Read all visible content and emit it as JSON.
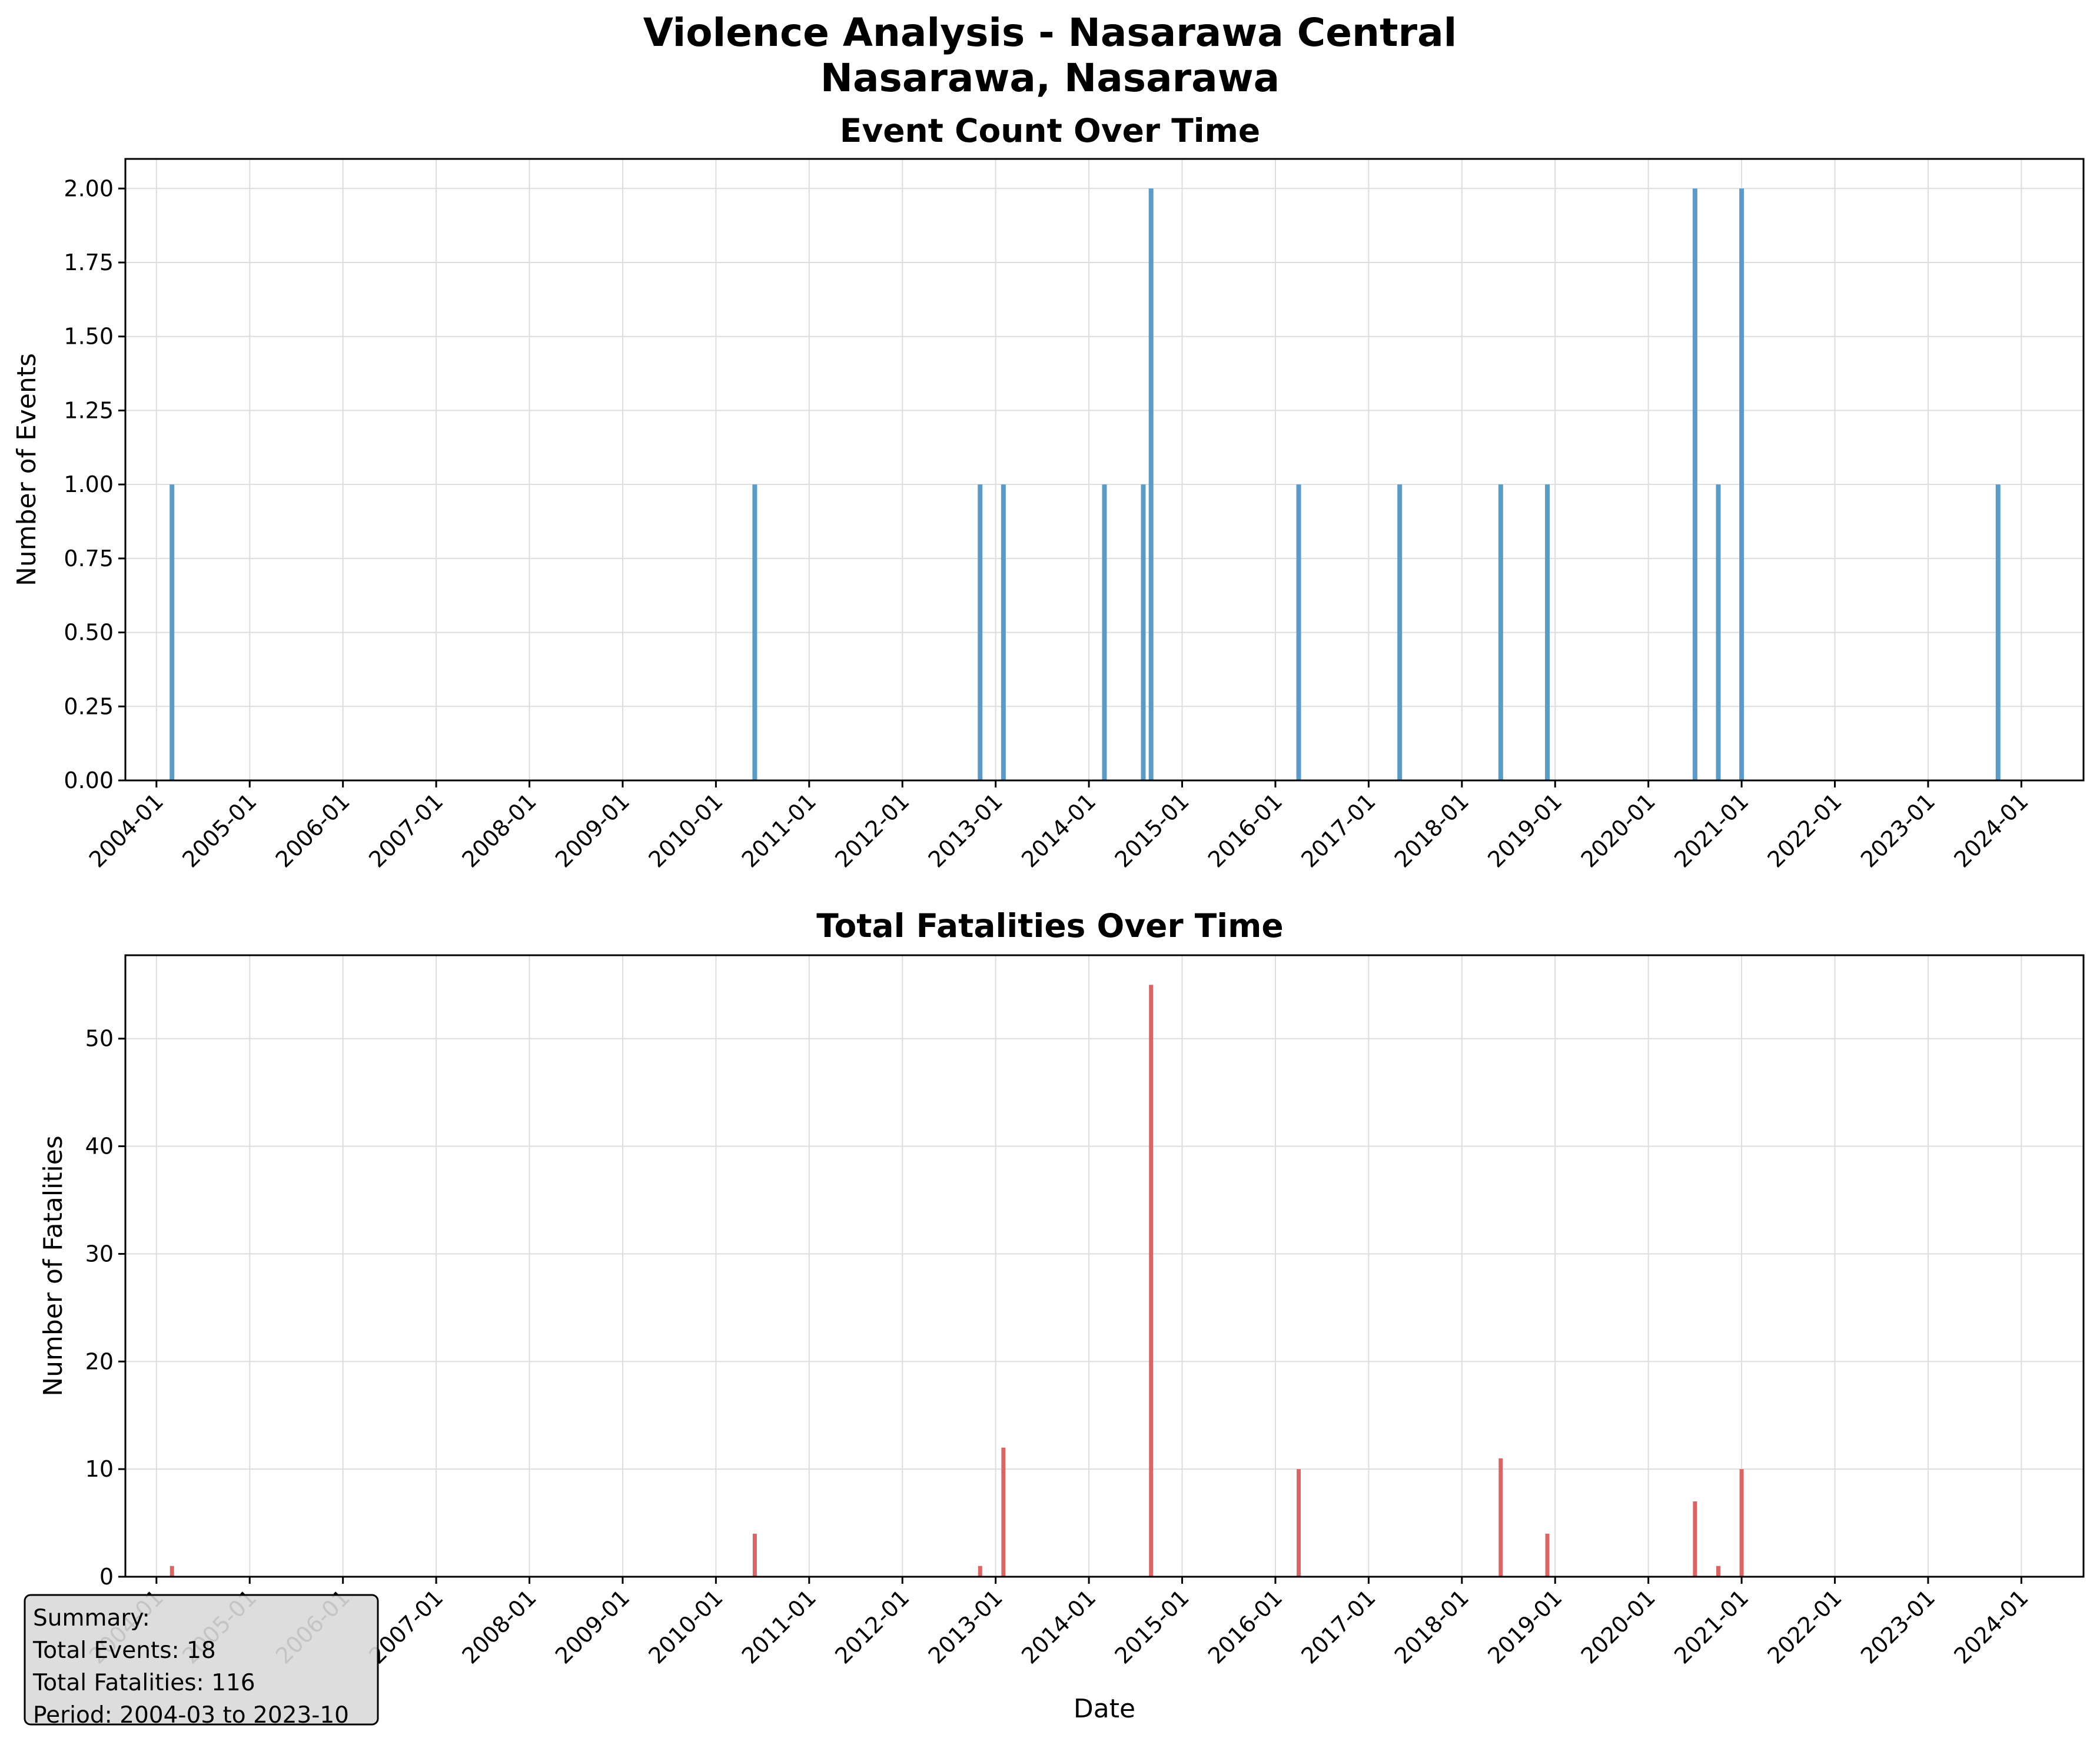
{
  "figure": {
    "title_line1": "Violence Analysis - Nasarawa Central",
    "title_line2": "Nasarawa, Nasarawa"
  },
  "colors": {
    "events_bar": "#5b9bc6",
    "fatalities_bar": "#d96666",
    "grid": "#dddddd",
    "summary_bg": "#d9d9d9"
  },
  "summary": {
    "heading": "Summary:",
    "total_events": "Total Events: 18",
    "total_fatalities": "Total Fatalities: 116",
    "period": "Period: 2004-03 to 2023-10"
  },
  "chart_data": [
    {
      "type": "bar",
      "title": "Event Count Over Time",
      "xlabel": "",
      "ylabel": "Number of Events",
      "x_axis": "date (monthly)",
      "xlim": [
        "2003-09",
        "2024-09"
      ],
      "ylim": [
        0,
        2.1
      ],
      "yticks": [
        0,
        0.25,
        0.5,
        0.75,
        1.0,
        1.25,
        1.5,
        1.75,
        2.0
      ],
      "ytick_labels": [
        "0.00",
        "0.25",
        "0.50",
        "0.75",
        "1.00",
        "1.25",
        "1.50",
        "1.75",
        "2.00"
      ],
      "xtick_labels": [
        "2004-01",
        "2005-01",
        "2006-01",
        "2007-01",
        "2008-01",
        "2009-01",
        "2010-01",
        "2011-01",
        "2012-01",
        "2013-01",
        "2014-01",
        "2015-01",
        "2016-01",
        "2017-01",
        "2018-01",
        "2019-01",
        "2020-01",
        "2021-01",
        "2022-01",
        "2023-01",
        "2024-01"
      ],
      "grid": true,
      "x": [
        "2004-03",
        "2010-06",
        "2012-11",
        "2013-02",
        "2014-03",
        "2014-08",
        "2014-09",
        "2016-04",
        "2017-05",
        "2018-06",
        "2018-12",
        "2020-07",
        "2020-10",
        "2021-01",
        "2023-10"
      ],
      "values": [
        1,
        1,
        1,
        1,
        1,
        1,
        2,
        1,
        1,
        1,
        1,
        2,
        1,
        2,
        1
      ]
    },
    {
      "type": "bar",
      "title": "Total Fatalities Over Time",
      "xlabel": "Date",
      "ylabel": "Number of Fatalities",
      "x_axis": "date (monthly)",
      "xlim": [
        "2003-09",
        "2024-09"
      ],
      "ylim": [
        0,
        57.75
      ],
      "yticks": [
        0,
        10,
        20,
        30,
        40,
        50
      ],
      "ytick_labels": [
        "0",
        "10",
        "20",
        "30",
        "40",
        "50"
      ],
      "xtick_labels": [
        "2004-01",
        "2005-01",
        "2006-01",
        "2007-01",
        "2008-01",
        "2009-01",
        "2010-01",
        "2011-01",
        "2012-01",
        "2013-01",
        "2014-01",
        "2015-01",
        "2016-01",
        "2017-01",
        "2018-01",
        "2019-01",
        "2020-01",
        "2021-01",
        "2022-01",
        "2023-01",
        "2024-01"
      ],
      "grid": true,
      "x": [
        "2004-03",
        "2010-06",
        "2012-11",
        "2013-02",
        "2014-03",
        "2014-08",
        "2014-09",
        "2016-04",
        "2017-05",
        "2018-06",
        "2018-12",
        "2020-07",
        "2020-10",
        "2021-01",
        "2023-10"
      ],
      "values": [
        1,
        4,
        1,
        12,
        0,
        0,
        55,
        10,
        0,
        11,
        4,
        7,
        1,
        10,
        0
      ]
    }
  ]
}
